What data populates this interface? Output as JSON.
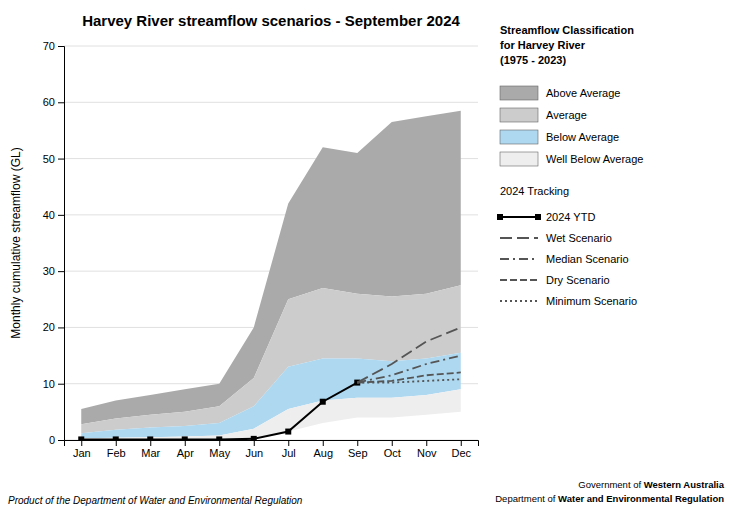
{
  "chart_data": {
    "type": "area",
    "title": "Harvey River streamflow scenarios - September 2024",
    "y_label": "Monthly cumulative streamflow (GL)",
    "categories": [
      "Jan",
      "Feb",
      "Mar",
      "Apr",
      "May",
      "Jun",
      "Jul",
      "Aug",
      "Sep",
      "Oct",
      "Nov",
      "Dec"
    ],
    "ylim": [
      0,
      70
    ],
    "yticks": [
      0,
      10,
      20,
      30,
      40,
      50,
      60,
      70
    ],
    "grid": true,
    "legend": "right",
    "legend_title": [
      "Streamflow Classification",
      "for Harvey River",
      "(1975 - 2023)"
    ],
    "legend_line_title": "2024 Tracking",
    "series": [
      {
        "name": "Above Average",
        "type": "band",
        "color": "#aaaaaa",
        "upper": [
          5.5,
          7.0,
          8.0,
          9.0,
          10.0,
          20.0,
          42.0,
          52.0,
          51.0,
          56.5,
          57.5,
          58.5
        ],
        "lower": [
          2.8,
          3.8,
          4.5,
          5.0,
          6.0,
          11.0,
          25.0,
          27.0,
          26.0,
          25.5,
          26.0,
          27.5
        ]
      },
      {
        "name": "Average",
        "type": "band",
        "color": "#cccccc",
        "upper": [
          2.8,
          3.8,
          4.5,
          5.0,
          6.0,
          11.0,
          25.0,
          27.0,
          26.0,
          25.5,
          26.0,
          27.5
        ],
        "lower": [
          1.2,
          1.8,
          2.2,
          2.5,
          3.0,
          6.0,
          13.0,
          14.5,
          14.5,
          14.0,
          14.5,
          15.5
        ]
      },
      {
        "name": "Below Average",
        "type": "band",
        "color": "#add8f0",
        "upper": [
          1.2,
          1.8,
          2.2,
          2.5,
          3.0,
          6.0,
          13.0,
          14.5,
          14.5,
          14.0,
          14.5,
          15.5
        ],
        "lower": [
          0.3,
          0.4,
          0.5,
          0.6,
          0.8,
          2.0,
          5.5,
          7.0,
          7.5,
          7.5,
          8.0,
          9.0
        ]
      },
      {
        "name": "Well Below Average",
        "type": "band",
        "color": "#eeeeee",
        "upper": [
          0.3,
          0.4,
          0.5,
          0.6,
          0.8,
          2.0,
          5.5,
          7.0,
          7.5,
          7.5,
          8.0,
          9.0
        ],
        "lower": [
          0.0,
          0.0,
          0.0,
          0.0,
          0.0,
          0.3,
          1.5,
          3.0,
          4.0,
          4.0,
          4.5,
          5.0
        ]
      },
      {
        "name": "2024 YTD",
        "type": "line",
        "color": "#000000",
        "line_style": "solid",
        "marker": "square",
        "x": [
          "Jan",
          "Feb",
          "Mar",
          "Apr",
          "May",
          "Jun",
          "Jul",
          "Aug",
          "Sep"
        ],
        "values": [
          0.1,
          0.1,
          0.1,
          0.1,
          0.1,
          0.2,
          1.5,
          6.8,
          10.2
        ]
      },
      {
        "name": "Wet Scenario",
        "type": "line",
        "color": "#555555",
        "line_style": "long-dashed",
        "x": [
          "Sep",
          "Oct",
          "Nov",
          "Dec"
        ],
        "values": [
          10.2,
          13.5,
          17.5,
          20.0
        ]
      },
      {
        "name": "Median Scenario",
        "type": "line",
        "color": "#555555",
        "line_style": "dashdot",
        "x": [
          "Sep",
          "Oct",
          "Nov",
          "Dec"
        ],
        "values": [
          10.2,
          11.5,
          13.5,
          15.0
        ]
      },
      {
        "name": "Dry Scenario",
        "type": "line",
        "color": "#555555",
        "line_style": "dashed",
        "x": [
          "Sep",
          "Oct",
          "Nov",
          "Dec"
        ],
        "values": [
          10.2,
          10.5,
          11.5,
          12.0
        ]
      },
      {
        "name": "Minimum Scenario",
        "type": "line",
        "color": "#555555",
        "line_style": "dotted",
        "x": [
          "Sep",
          "Oct",
          "Nov",
          "Dec"
        ],
        "values": [
          10.2,
          10.2,
          10.5,
          10.8
        ]
      }
    ],
    "footer": {
      "left": "Product of the Department of Water and Environmental Regulation",
      "right": [
        [
          "Government of ",
          "Western Australia"
        ],
        [
          "Department of ",
          "Water and Environmental Regulation"
        ]
      ]
    }
  }
}
